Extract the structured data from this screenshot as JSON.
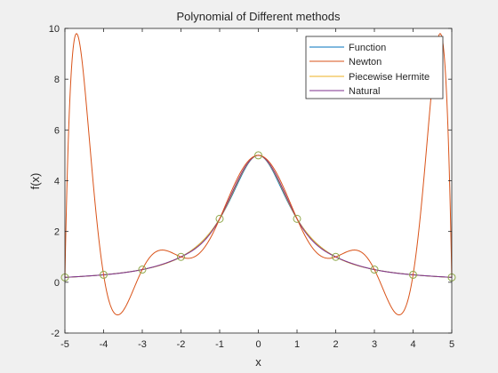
{
  "chart_data": {
    "type": "line",
    "title": "Polynomial of Different methods",
    "xlabel": "x",
    "ylabel": "f(x)",
    "xlim": [
      -5,
      5
    ],
    "ylim": [
      -2,
      10
    ],
    "x_ticks": [
      "-5",
      "-4",
      "-3",
      "-2",
      "-1",
      "0",
      "1",
      "2",
      "3",
      "4",
      "5"
    ],
    "y_ticks": [
      "-2",
      "0",
      "2",
      "4",
      "6",
      "8",
      "10"
    ],
    "legend_position": "top-right",
    "function_formula": "5/(1+x^2)",
    "nodes": {
      "x": [
        -5,
        -4,
        -3,
        -2,
        -1,
        0,
        1,
        2,
        3,
        4,
        5
      ],
      "y": [
        0.1923,
        0.2941,
        0.5,
        1.0,
        2.5,
        5.0,
        2.5,
        1.0,
        0.5,
        0.2941,
        0.1923
      ],
      "marker": "circle",
      "color": "#8fa84a"
    },
    "series": [
      {
        "name": "Function",
        "color": "#0072BD"
      },
      {
        "name": "Newton",
        "color": "#D95319"
      },
      {
        "name": "Piecewise Hermite",
        "color": "#EDB120"
      },
      {
        "name": "Natural",
        "color": "#7E2F8E"
      }
    ],
    "newton_extrema": [
      {
        "x": -4.8,
        "y": 9.78
      },
      {
        "x": -3.7,
        "y": -1.25
      },
      {
        "x": -2.45,
        "y": 1.28
      },
      {
        "x": 2.45,
        "y": 1.28
      },
      {
        "x": 3.7,
        "y": -1.25
      },
      {
        "x": 4.8,
        "y": 9.78
      }
    ]
  }
}
